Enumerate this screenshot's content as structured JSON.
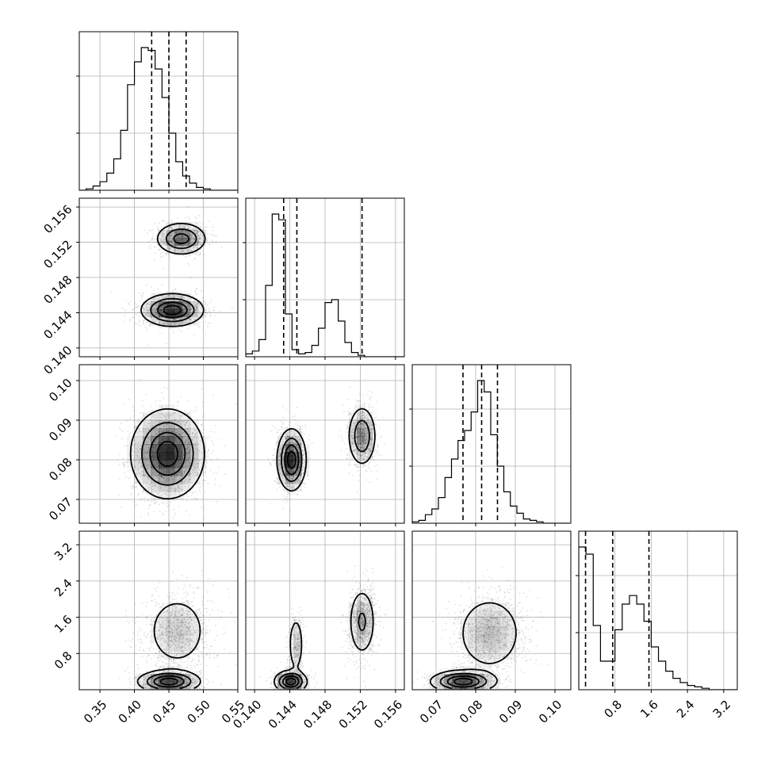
{
  "chart_data": {
    "type": "corner",
    "parameters": [
      {
        "name": "p0",
        "range": [
          0.32,
          0.55
        ],
        "ticks": [
          0.35,
          0.4,
          0.45,
          0.5,
          0.55
        ],
        "tick_labels": [
          "0.35",
          "0.40",
          "0.45",
          "0.50",
          "0.55"
        ],
        "quantiles": [
          0.425,
          0.45,
          0.475
        ],
        "histogram": {
          "edges_start": 0.32,
          "bin_width": 0.01,
          "counts": [
            0,
            0.01,
            0.03,
            0.06,
            0.12,
            0.22,
            0.42,
            0.74,
            0.9,
            1.0,
            0.98,
            0.85,
            0.65,
            0.4,
            0.2,
            0.1,
            0.05,
            0.02,
            0.01,
            0,
            0,
            0,
            0
          ]
        }
      },
      {
        "name": "p1",
        "range": [
          0.139,
          0.157
        ],
        "ticks": [
          0.14,
          0.144,
          0.148,
          0.152,
          0.156
        ],
        "tick_labels": [
          "0.140",
          "0.144",
          "0.148",
          "0.152",
          "0.156"
        ],
        "quantiles": [
          0.1433,
          0.1448,
          0.1522
        ],
        "histogram": {
          "edges_start": 0.139,
          "bin_width": 0.00075,
          "counts": [
            0.02,
            0.04,
            0.12,
            0.5,
            1.0,
            0.96,
            0.3,
            0.05,
            0.02,
            0.03,
            0.08,
            0.2,
            0.38,
            0.4,
            0.25,
            0.1,
            0.03,
            0.01,
            0,
            0,
            0,
            0,
            0,
            0
          ]
        }
      },
      {
        "name": "p2",
        "range": [
          0.064,
          0.104
        ],
        "ticks": [
          0.07,
          0.08,
          0.09,
          0.1
        ],
        "tick_labels": [
          "0.07",
          "0.08",
          "0.09",
          "0.10"
        ],
        "quantiles": [
          0.0768,
          0.0815,
          0.0855
        ],
        "histogram": {
          "edges_start": 0.064,
          "bin_width": 0.00165,
          "counts": [
            0.01,
            0.02,
            0.06,
            0.1,
            0.18,
            0.32,
            0.45,
            0.58,
            0.65,
            0.78,
            1.0,
            0.92,
            0.62,
            0.4,
            0.22,
            0.12,
            0.07,
            0.03,
            0.02,
            0.01,
            0,
            0,
            0,
            0
          ]
        }
      },
      {
        "name": "p3",
        "range": [
          0.0,
          3.5
        ],
        "ticks": [
          0.8,
          1.6,
          2.4,
          3.2
        ],
        "tick_labels": [
          "0.8",
          "1.6",
          "2.4",
          "3.2"
        ],
        "quantiles": [
          0.15,
          0.75,
          1.55
        ],
        "histogram": {
          "edges_start": 0.0,
          "bin_width": 0.16,
          "counts": [
            1.0,
            0.95,
            0.45,
            0.2,
            0.2,
            0.42,
            0.6,
            0.66,
            0.6,
            0.48,
            0.3,
            0.2,
            0.13,
            0.08,
            0.05,
            0.03,
            0.02,
            0.01,
            0,
            0,
            0,
            0
          ]
        }
      }
    ],
    "histogram_ticks": [
      0.36,
      0.72
    ],
    "distributions_2d": [
      {
        "x": 0,
        "y": 1,
        "modes": [
          {
            "mx": 0.455,
            "my": 0.1443,
            "sx": 0.022,
            "sy": 0.0009,
            "w": 0.62
          },
          {
            "mx": 0.468,
            "my": 0.1524,
            "sx": 0.018,
            "sy": 0.0009,
            "w": 0.38
          }
        ]
      },
      {
        "x": 0,
        "y": 2,
        "modes": [
          {
            "mx": 0.448,
            "my": 0.0815,
            "sx": 0.026,
            "sy": 0.0055,
            "w": 1.0
          }
        ]
      },
      {
        "x": 1,
        "y": 2,
        "modes": [
          {
            "mx": 0.1442,
            "my": 0.08,
            "sx": 0.0008,
            "sy": 0.0038,
            "w": 0.62
          },
          {
            "mx": 0.1522,
            "my": 0.086,
            "sx": 0.0008,
            "sy": 0.0038,
            "w": 0.38
          }
        ]
      },
      {
        "x": 0,
        "y": 3,
        "modes": [
          {
            "mx": 0.462,
            "my": 1.3,
            "sx": 0.025,
            "sy": 0.45,
            "w": 0.55
          },
          {
            "mx": 0.45,
            "my": 0.18,
            "sx": 0.022,
            "sy": 0.12,
            "w": 0.45
          }
        ]
      },
      {
        "x": 1,
        "y": 3,
        "modes": [
          {
            "mx": 0.1441,
            "my": 0.18,
            "sx": 0.0009,
            "sy": 0.12,
            "w": 0.38
          },
          {
            "mx": 0.1447,
            "my": 1.0,
            "sx": 0.00045,
            "sy": 0.35,
            "w": 0.17
          },
          {
            "mx": 0.1522,
            "my": 1.5,
            "sx": 0.0008,
            "sy": 0.4,
            "w": 0.45
          }
        ]
      },
      {
        "x": 2,
        "y": 3,
        "modes": [
          {
            "mx": 0.0835,
            "my": 1.25,
            "sx": 0.0045,
            "sy": 0.45,
            "w": 0.6
          },
          {
            "mx": 0.0768,
            "my": 0.18,
            "sx": 0.004,
            "sy": 0.12,
            "w": 0.4
          }
        ]
      }
    ],
    "levels": [
      0.12,
      0.36,
      0.62,
      0.85
    ],
    "grid": true,
    "legend": "none",
    "title": "",
    "xlabel": "",
    "ylabel": ""
  }
}
